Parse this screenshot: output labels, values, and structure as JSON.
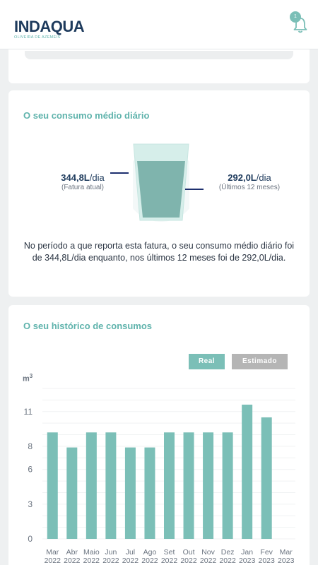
{
  "brand": {
    "name": "INDAQUA",
    "subtitle": "OLIVEIRA DE AZEMÉIS"
  },
  "notifications": {
    "count": "1"
  },
  "daily": {
    "title": "O seu consumo médio diário",
    "current": {
      "value": "344,8L",
      "unit": "/dia",
      "caption": "(Fatura atual)"
    },
    "average": {
      "value": "292,0L",
      "unit": "/dia",
      "caption": "(Últimos 12 meses)"
    },
    "summary": "No período a que reporta esta fatura, o seu consumo médio diário foi de 344,8L/dia enquanto, nos últimos 12 meses foi de 292,0L/dia."
  },
  "history": {
    "title": "O seu histórico de consumos",
    "legend_real": "Real",
    "legend_estimated": "Estimado",
    "colors": {
      "real": "#7bbfb7",
      "estimated": "#b5b5b5"
    }
  },
  "chart_data": {
    "type": "bar",
    "ylabel": "m3",
    "ylim": [
      0,
      13
    ],
    "yticks": [
      0,
      3,
      6,
      8,
      11
    ],
    "categories": [
      "Mar 2022",
      "Abr 2022",
      "Maio 2022",
      "Jun 2022",
      "Jul 2022",
      "Ago 2022",
      "Set 2022",
      "Out 2022",
      "Nov 2022",
      "Dez 2022",
      "Jan 2023",
      "Fev 2023",
      "Mar 2023"
    ],
    "series": [
      {
        "name": "Real",
        "values": [
          9.2,
          7.9,
          9.2,
          9.2,
          7.9,
          7.9,
          9.2,
          9.2,
          9.2,
          9.2,
          11.6,
          10.5,
          0
        ]
      }
    ],
    "grid": true
  }
}
